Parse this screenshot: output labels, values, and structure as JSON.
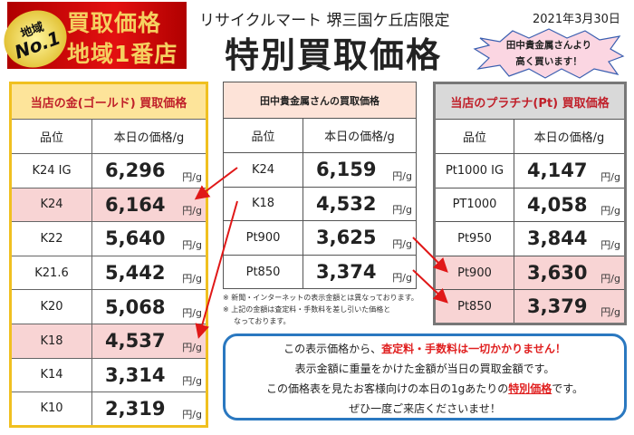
{
  "logo": {
    "badge_line1": "地域",
    "badge_line2": "No.1",
    "line1": "買取価格",
    "line2": "地域1番店"
  },
  "header": {
    "subtitle": "リサイクルマート 堺三国ケ丘店限定",
    "date": "2021年3月30日",
    "title": "特別買取価格"
  },
  "burst": {
    "line1": "田中貴金属さんより",
    "line2": "高く買います！"
  },
  "unit": "円/g",
  "gold": {
    "title": "当店の金(ゴールド) 買取価格",
    "col_grade": "品位",
    "col_price": "本日の価格/g",
    "header_bg": "#fde49a",
    "rows": [
      {
        "grade": "K24 IG",
        "price": "6,296"
      },
      {
        "grade": "K24",
        "price": "6,164"
      },
      {
        "grade": "K22",
        "price": "5,640"
      },
      {
        "grade": "K21.6",
        "price": "5,442"
      },
      {
        "grade": "K20",
        "price": "5,068"
      },
      {
        "grade": "K18",
        "price": "4,537"
      },
      {
        "grade": "K14",
        "price": "3,314"
      },
      {
        "grade": "K10",
        "price": "2,319"
      }
    ]
  },
  "tanaka": {
    "title": "田中貴金属さんの買取価格",
    "col_grade": "品位",
    "col_price": "本日の価格/g",
    "header_bg": "#fde3d8",
    "rows": [
      {
        "grade": "K24",
        "price": "6,159"
      },
      {
        "grade": "K18",
        "price": "4,532"
      },
      {
        "grade": "Pt900",
        "price": "3,625"
      },
      {
        "grade": "Pt850",
        "price": "3,374"
      }
    ]
  },
  "platinum": {
    "title": "当店のプラチナ(Pt) 買取価格",
    "col_grade": "品位",
    "col_price": "本日の価格/g",
    "header_bg": "#d9d9d9",
    "rows": [
      {
        "grade": "Pt1000 IG",
        "price": "4,147"
      },
      {
        "grade": "PT1000",
        "price": "4,058"
      },
      {
        "grade": "Pt950",
        "price": "3,844"
      },
      {
        "grade": "Pt900",
        "price": "3,630"
      },
      {
        "grade": "Pt850",
        "price": "3,379"
      }
    ]
  },
  "notes": [
    "※ 新聞・インターネットの表示金額とは異なっております。",
    "※ 上記の金額は査定料・手数料を差し引いた価格と",
    "なっております。"
  ],
  "message": {
    "l1a": "この表示価格から、",
    "l1b": "査定料・手数料は一切かかりません！",
    "l2": "表示金額に重量をかけた金額が当日の買取金額です。",
    "l3a": "この価格表を見たお客様向けの本日の1gあたりの",
    "l3b": "特別価格",
    "l3c": "です。",
    "l4": "ぜひ一度ご来店くださいませ！"
  },
  "colors": {
    "accent_red": "#e02020",
    "highlight": "#f8d4d4",
    "frame_blue": "#2a78c0",
    "gold_border": "#f0c020"
  }
}
